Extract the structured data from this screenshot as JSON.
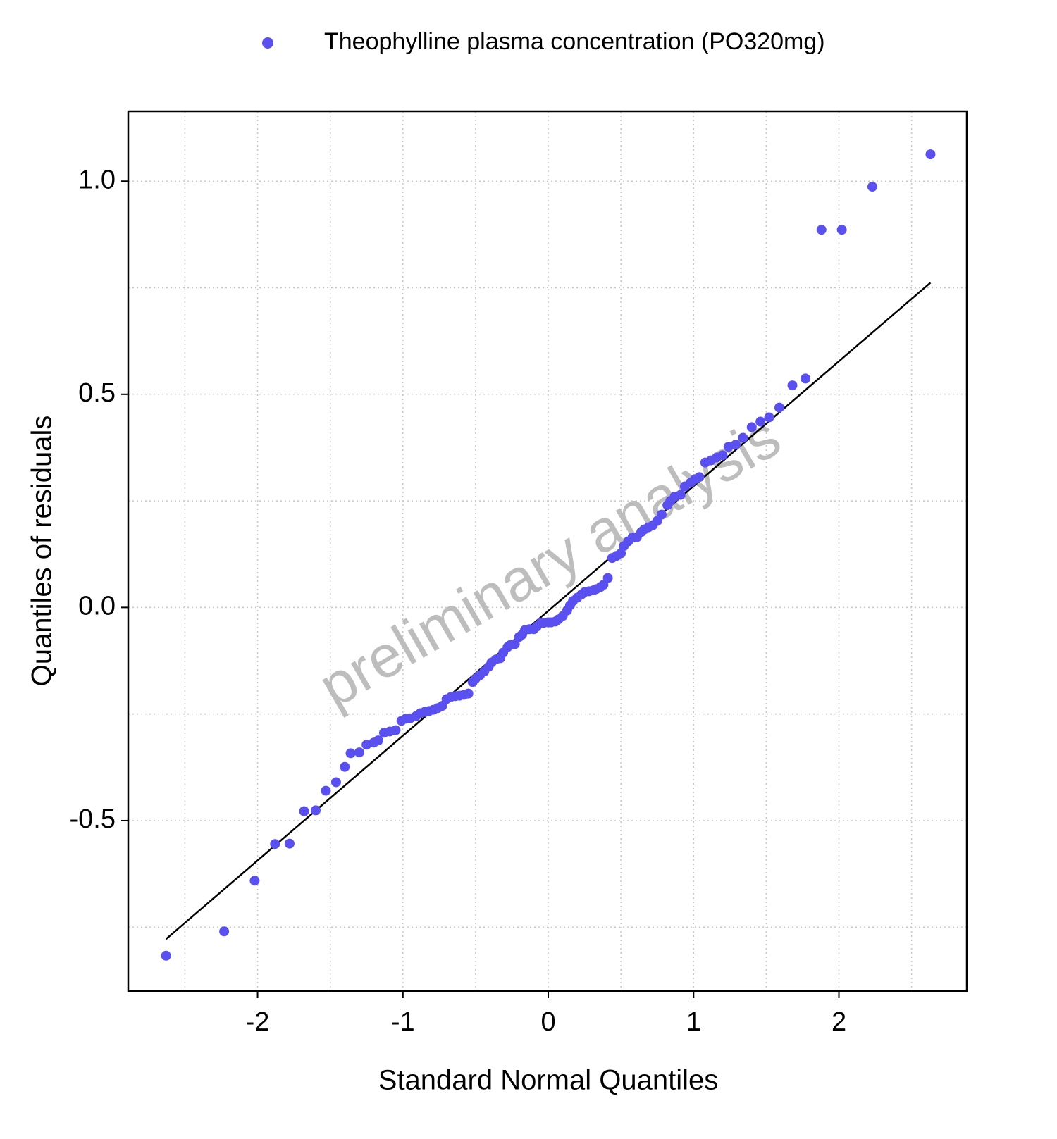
{
  "chart_data": {
    "type": "scatter",
    "legend_label": "Theophylline plasma concentration (PO320mg)",
    "xlabel": "Standard Normal Quantiles",
    "ylabel": "Quantiles of residuals",
    "watermark": "preliminary analysis",
    "legend_position": "top",
    "grid": true,
    "color": "#5a50f0",
    "xlim": [
      -2.89,
      2.88
    ],
    "ylim": [
      -0.9,
      1.164
    ],
    "xticks": [
      -2,
      -1,
      0,
      1,
      2
    ],
    "yticks": [
      {
        "value": -0.5,
        "label": "-0.5"
      },
      {
        "value": 0,
        "label": "0.0"
      },
      {
        "value": 0.5,
        "label": "0.5"
      },
      {
        "value": 1,
        "label": "1.0"
      }
    ],
    "x_minor_ticks": [
      -2.5,
      -1.5,
      -0.5,
      0.5,
      1.5,
      2.5
    ],
    "y_minor_ticks": [
      -0.75,
      -0.25,
      0.25,
      0.75
    ],
    "reference_line": {
      "x": [
        -2.63,
        2.63
      ],
      "y": [
        -0.778,
        0.762
      ]
    },
    "x": [
      -2.63,
      -2.23,
      -2.02,
      -1.88,
      -1.78,
      -1.68,
      -1.6,
      -1.53,
      -1.46,
      -1.4,
      -1.36,
      -1.3,
      -1.25,
      -1.2,
      -1.17,
      -1.13,
      -1.09,
      -1.05,
      -1.01,
      -0.98,
      -0.95,
      -0.91,
      -0.88,
      -0.85,
      -0.82,
      -0.79,
      -0.76,
      -0.73,
      -0.7,
      -0.67,
      -0.64,
      -0.61,
      -0.58,
      -0.55,
      -0.52,
      -0.5,
      -0.47,
      -0.44,
      -0.41,
      -0.39,
      -0.36,
      -0.33,
      -0.31,
      -0.28,
      -0.26,
      -0.23,
      -0.2,
      -0.18,
      -0.16,
      -0.13,
      -0.1,
      -0.08,
      -0.05,
      -0.03,
      0,
      0.02,
      0.05,
      0.07,
      0.1,
      0.13,
      0.15,
      0.17,
      0.2,
      0.23,
      0.25,
      0.28,
      0.31,
      0.33,
      0.36,
      0.38,
      0.41,
      0.44,
      0.47,
      0.5,
      0.52,
      0.55,
      0.58,
      0.61,
      0.64,
      0.66,
      0.69,
      0.72,
      0.75,
      0.78,
      0.82,
      0.84,
      0.87,
      0.91,
      0.94,
      0.98,
      1.01,
      1.04,
      1.08,
      1.12,
      1.16,
      1.2,
      1.24,
      1.29,
      1.34,
      1.4,
      1.46,
      1.52,
      1.59,
      1.68,
      1.77,
      1.88,
      2.02,
      2.23,
      2.63
    ],
    "values": [
      -0.817,
      -0.76,
      -0.641,
      -0.555,
      -0.554,
      -0.478,
      -0.476,
      -0.43,
      -0.41,
      -0.374,
      -0.342,
      -0.34,
      -0.322,
      -0.317,
      -0.312,
      -0.294,
      -0.291,
      -0.288,
      -0.266,
      -0.261,
      -0.26,
      -0.255,
      -0.248,
      -0.245,
      -0.243,
      -0.24,
      -0.236,
      -0.231,
      -0.215,
      -0.21,
      -0.208,
      -0.207,
      -0.205,
      -0.202,
      -0.175,
      -0.167,
      -0.159,
      -0.15,
      -0.139,
      -0.129,
      -0.122,
      -0.119,
      -0.106,
      -0.093,
      -0.088,
      -0.086,
      -0.069,
      -0.064,
      -0.053,
      -0.051,
      -0.051,
      -0.045,
      -0.036,
      -0.036,
      -0.035,
      -0.035,
      -0.033,
      -0.028,
      -0.02,
      -0.007,
      0.005,
      0.015,
      0.023,
      0.031,
      0.036,
      0.038,
      0.04,
      0.043,
      0.048,
      0.053,
      0.069,
      0.116,
      0.121,
      0.127,
      0.144,
      0.155,
      0.164,
      0.165,
      0.177,
      0.183,
      0.188,
      0.193,
      0.203,
      0.218,
      0.24,
      0.25,
      0.26,
      0.264,
      0.284,
      0.293,
      0.301,
      0.306,
      0.34,
      0.345,
      0.352,
      0.357,
      0.377,
      0.382,
      0.398,
      0.423,
      0.436,
      0.446,
      0.469,
      0.521,
      0.537,
      0.886,
      0.886,
      0.987,
      1.063
    ]
  }
}
